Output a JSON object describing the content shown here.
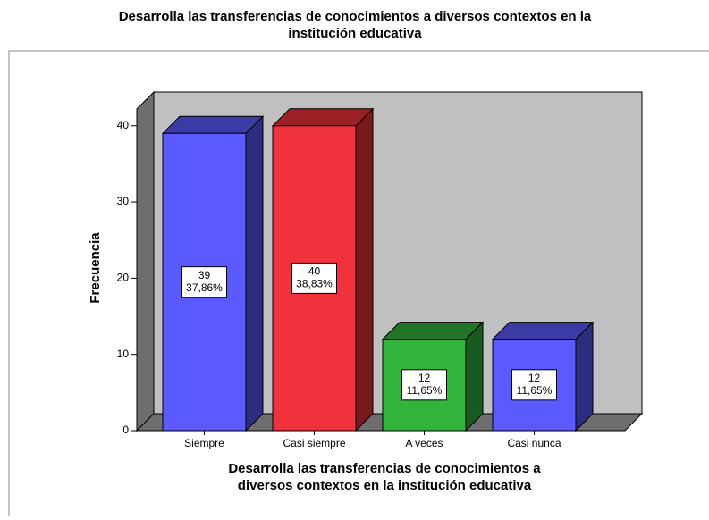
{
  "chart_data": {
    "type": "bar3d",
    "title": "Desarrolla las transferencias de conocimientos a diversos contextos en la",
    "title_line2": "institución educativa",
    "y_label": "Frecuencia",
    "x_label": "Desarrolla las transferencias de conocimientos a",
    "x_label_line2": "diversos contextos en la institución educativa",
    "categories": [
      "Siempre",
      "Casi siempre",
      "A veces",
      "Casi nunca"
    ],
    "values": [
      39,
      40,
      12,
      12
    ],
    "percent_values": [
      37.86,
      38.83,
      11.65,
      11.65
    ],
    "percent_labels": [
      "37,86%",
      "38,83%",
      "11,65%",
      "11,65%"
    ],
    "colors": [
      "#5a5aff",
      "#f0323c",
      "#32b43c",
      "#5a5aff"
    ],
    "ylim": [
      0,
      42.2
    ],
    "yticks": [
      0,
      10,
      20,
      30,
      40
    ]
  }
}
